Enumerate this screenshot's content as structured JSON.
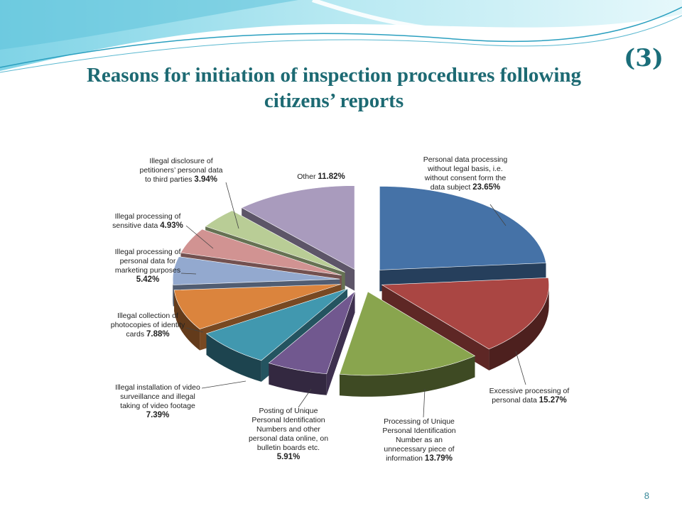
{
  "slide": {
    "label": "(3)",
    "title_line1": "Reasons for initiation of inspection procedures following",
    "title_line2": "citizens’ reports",
    "page_number": "8"
  },
  "chart_data": {
    "type": "pie",
    "title": "",
    "slices": [
      {
        "label_lines": [
          "Personal data processing",
          "without legal basis, i.e.",
          "without consent form the",
          "data subject"
        ],
        "value": 23.65,
        "value_label": "23.65%",
        "color": "#4572a7"
      },
      {
        "label_lines": [
          "Excessive processing of",
          "personal data"
        ],
        "value": 15.27,
        "value_label": "15.27%",
        "color": "#aa4643"
      },
      {
        "label_lines": [
          "Processing of Unique",
          "Personal Identification",
          "Number as an",
          "unnecessary piece of",
          "information"
        ],
        "value": 13.79,
        "value_label": "13.79%",
        "color": "#89a54e"
      },
      {
        "label_lines": [
          "Posting of Unique",
          "Personal Identification",
          "Numbers and other",
          "personal data online, on",
          "bulletin boards etc."
        ],
        "value": 5.91,
        "value_label": "5.91%",
        "color": "#71588f"
      },
      {
        "label_lines": [
          "Illegal installation of video",
          "surveillance and illegal",
          "taking of video footage"
        ],
        "value": 7.39,
        "value_label": "7.39%",
        "color": "#4198af"
      },
      {
        "label_lines": [
          "Illegal collection of",
          "photocopies of identity",
          "cards"
        ],
        "value": 7.88,
        "value_label": "7.88%",
        "color": "#db843d"
      },
      {
        "label_lines": [
          "Illegal processing of",
          "personal data for",
          "marketing purposes"
        ],
        "value": 5.42,
        "value_label": "5.42%",
        "color": "#93a9cf"
      },
      {
        "label_lines": [
          "Illegal processing of",
          "sensitive data"
        ],
        "value": 4.93,
        "value_label": "4.93%",
        "color": "#d19392"
      },
      {
        "label_lines": [
          "Illegal disclosure of",
          "petitioners’ personal data",
          "to third parties"
        ],
        "value": 3.94,
        "value_label": "3.94%",
        "color": "#b9cd96"
      },
      {
        "label_lines": [
          "Other"
        ],
        "value": 11.82,
        "value_label": "11.82%",
        "color": "#a99bbd"
      }
    ]
  }
}
